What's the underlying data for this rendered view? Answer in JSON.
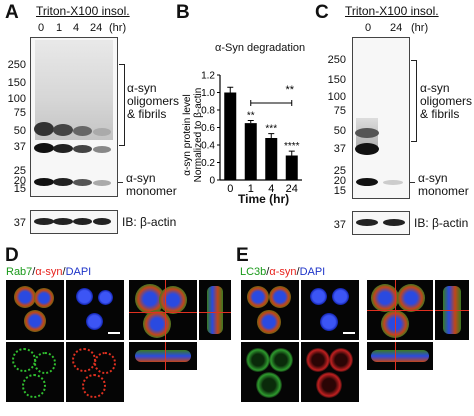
{
  "panelA": {
    "letter": "A",
    "condition": "Triton-X100 insol.",
    "lanes": [
      "0",
      "1",
      "4",
      "24"
    ],
    "unit": "(hr)",
    "mw_markers": [
      "250",
      "150",
      "100",
      "75",
      "50",
      "37",
      "25",
      "20",
      "15"
    ],
    "oligomer_label": [
      "α-syn",
      "oligomers",
      "& fibrils"
    ],
    "monomer_label": [
      "α-syn",
      "monomer"
    ],
    "actin_mw": "37",
    "actin_label": "IB: β-actin"
  },
  "panelB": {
    "letter": "B",
    "chart_data": {
      "type": "bar",
      "title": "α-Syn degradation",
      "categories": [
        "0",
        "1",
        "4",
        "24"
      ],
      "values": [
        1.0,
        0.65,
        0.48,
        0.28
      ],
      "errors": [
        0.06,
        0.03,
        0.05,
        0.05
      ],
      "significance": [
        "",
        "**",
        "***",
        "****"
      ],
      "bracket": {
        "from": "1",
        "to": "24",
        "label": "**"
      },
      "xlabel": "Time (hr)",
      "ylabel_line1": "α-syn protein level",
      "ylabel_line2": "Normalized to β-actin",
      "ylim": [
        0,
        1.2
      ],
      "yticks": [
        "0",
        "0.2",
        "0.4",
        "0.6",
        "0.8",
        "1.0",
        "1.2"
      ],
      "bar_color": "#000000"
    }
  },
  "panelC": {
    "letter": "C",
    "condition": "Triton-X100 insol.",
    "lanes": [
      "0",
      "24"
    ],
    "unit": "(hr)",
    "mw_markers": [
      "250",
      "150",
      "100",
      "75",
      "50",
      "37",
      "25",
      "20",
      "15"
    ],
    "oligomer_label": [
      "α-syn",
      "oligomers",
      "& fibrils"
    ],
    "monomer_label": [
      "α-syn",
      "monomer"
    ],
    "actin_mw": "37",
    "actin_label": "IB: β-actin"
  },
  "panelD": {
    "letter": "D",
    "stain_1": "Rab7",
    "stain_2": "α-syn",
    "stain_3": "DAPI",
    "sep": "/",
    "colors": {
      "stain_1": "#1a9a1a",
      "stain_2": "#e8231d",
      "stain_3": "#1d33c8"
    }
  },
  "panelE": {
    "letter": "E",
    "stain_1": "LC3b",
    "stain_2": "α-syn",
    "stain_3": "DAPI",
    "sep": "/",
    "colors": {
      "stain_1": "#1a9a1a",
      "stain_2": "#e8231d",
      "stain_3": "#1d33c8"
    }
  }
}
